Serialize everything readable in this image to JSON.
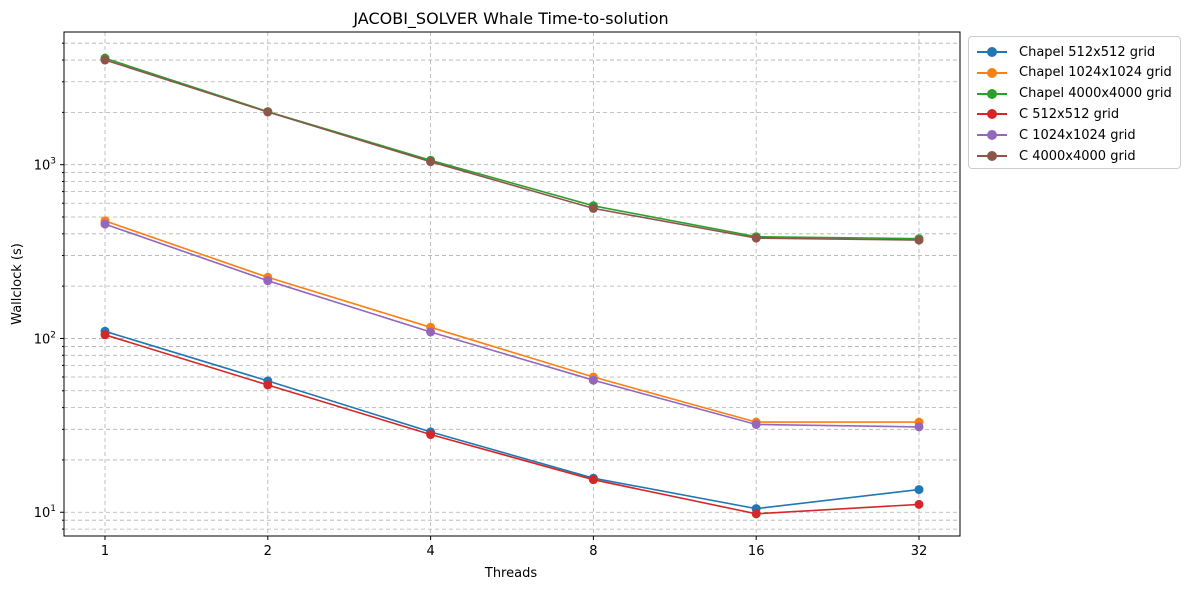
{
  "chart_data": {
    "type": "line",
    "title": "JACOBI_SOLVER Whale Time-to-solution",
    "xlabel": "Threads",
    "ylabel": "Wallclock (s)",
    "x_scale": "log2",
    "y_scale": "log",
    "x": [
      1,
      2,
      4,
      8,
      16,
      32
    ],
    "x_tick_labels": [
      "1",
      "2",
      "4",
      "8",
      "16",
      "32"
    ],
    "ylim": [
      7.3,
      5800
    ],
    "y_tick_labels": [
      {
        "base": "10",
        "exp": "1",
        "value": 10
      },
      {
        "base": "10",
        "exp": "2",
        "value": 100
      },
      {
        "base": "10",
        "exp": "3",
        "value": 1000
      }
    ],
    "grid": true,
    "legend_position": "outside-right",
    "series": [
      {
        "name": "Chapel 512x512 grid",
        "color": "#1f77b4",
        "values": [
          110,
          57,
          29,
          15.7,
          10.5,
          13.5
        ]
      },
      {
        "name": "Chapel 1024x1024 grid",
        "color": "#ff7f0e",
        "values": [
          475,
          225,
          116,
          60,
          33,
          33
        ]
      },
      {
        "name": "Chapel 4000x4000 grid",
        "color": "#2ca02c",
        "values": [
          4100,
          2020,
          1060,
          580,
          385,
          375
        ]
      },
      {
        "name": "C 512x512 grid",
        "color": "#d62728",
        "values": [
          105,
          54,
          28,
          15.4,
          9.8,
          11.1
        ]
      },
      {
        "name": "C 1024x1024 grid",
        "color": "#9467bd",
        "values": [
          455,
          215,
          109,
          57.5,
          32,
          31
        ]
      },
      {
        "name": "C 4000x4000 grid",
        "color": "#8c564b",
        "values": [
          4000,
          2010,
          1040,
          560,
          378,
          368
        ]
      }
    ]
  }
}
